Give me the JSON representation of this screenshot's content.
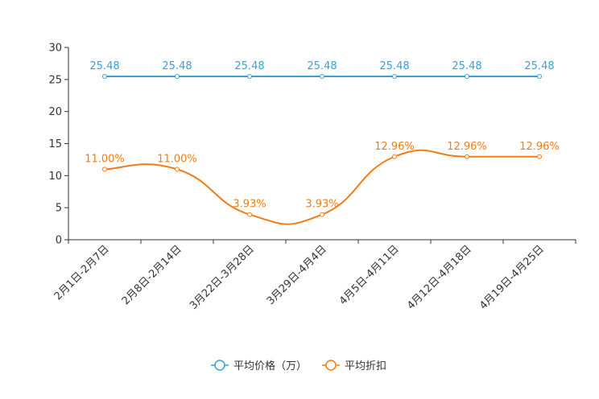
{
  "chart_data": {
    "type": "line",
    "categories": [
      "2月1日-2月7日",
      "2月8日-2月14日",
      "3月22日-3月28日",
      "3月29日-4月4日",
      "4月5日-4月11日",
      "4月12日-4月18日",
      "4月19日-4月25日"
    ],
    "series": [
      {
        "name": "平均价格（万）",
        "color": "#3d9fd3",
        "smooth": false,
        "values": [
          25.48,
          25.48,
          25.48,
          25.48,
          25.48,
          25.48,
          25.48
        ],
        "labels": [
          "25.48",
          "25.48",
          "25.48",
          "25.48",
          "25.48",
          "25.48",
          "25.48"
        ]
      },
      {
        "name": "平均折扣",
        "color": "#f57b15",
        "smooth": true,
        "values": [
          11.0,
          11.0,
          3.93,
          3.93,
          12.96,
          12.96,
          12.96
        ],
        "labels": [
          "11.00%",
          "11.00%",
          "3.93%",
          "3.93%",
          "12.96%",
          "12.96%",
          "12.96%"
        ]
      }
    ],
    "ylim": [
      0,
      30
    ],
    "yticks": [
      "0",
      "5",
      "10",
      "15",
      "20",
      "25",
      "30"
    ],
    "grid": false,
    "legend_position": "bottom-center",
    "xlabel": "",
    "ylabel": ""
  }
}
